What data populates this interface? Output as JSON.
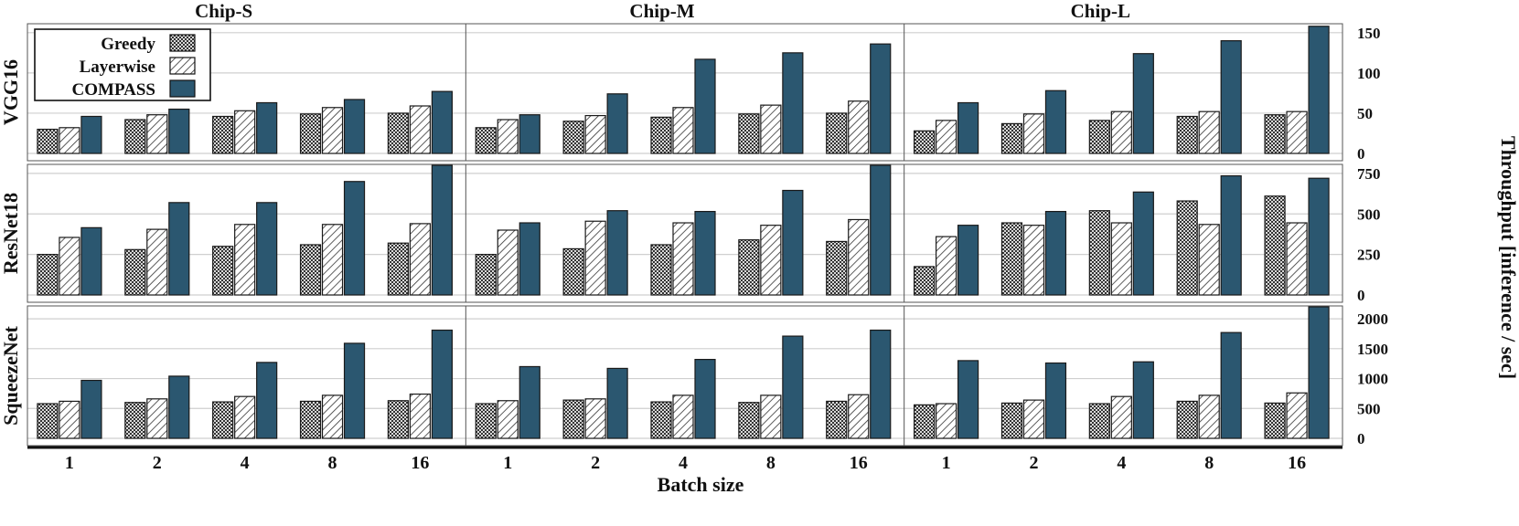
{
  "chart_data": {
    "type": "bar",
    "xlabel": "Batch size",
    "ylabel": "Throughput [inference / sec]",
    "columns": [
      "Chip-S",
      "Chip-M",
      "Chip-L"
    ],
    "categories": [
      "1",
      "2",
      "4",
      "8",
      "16"
    ],
    "legend": {
      "placement": "top-left",
      "entries": [
        "Greedy",
        "Layerwise",
        "COMPASS"
      ]
    },
    "series_styles": [
      {
        "name": "Greedy",
        "pattern": "checker",
        "color": "#8c8c8c"
      },
      {
        "name": "Layerwise",
        "pattern": "diagonal-hatch",
        "color": "#ffffff"
      },
      {
        "name": "COMPASS",
        "pattern": "solid",
        "color": "#2b5770"
      }
    ],
    "rows": [
      {
        "label": "VGG16",
        "ylim": [
          0,
          160
        ],
        "yticks": [
          0,
          50,
          100,
          150
        ],
        "panels": [
          {
            "greedy": [
              30,
              42,
              46,
              49,
              50
            ],
            "layerwise": [
              32,
              48,
              53,
              57,
              59
            ],
            "compass": [
              46,
              55,
              63,
              67,
              77
            ]
          },
          {
            "greedy": [
              32,
              40,
              45,
              49,
              50
            ],
            "layerwise": [
              42,
              47,
              57,
              60,
              65
            ],
            "compass": [
              48,
              74,
              117,
              125,
              136
            ]
          },
          {
            "greedy": [
              28,
              37,
              41,
              46,
              48
            ],
            "layerwise": [
              41,
              49,
              52,
              52,
              52
            ],
            "compass": [
              63,
              78,
              124,
              140,
              158
            ]
          }
        ]
      },
      {
        "label": "ResNet18",
        "ylim": [
          0,
          800
        ],
        "yticks": [
          0,
          250,
          500,
          750
        ],
        "panels": [
          {
            "greedy": [
              250,
              280,
              300,
              310,
              320
            ],
            "layerwise": [
              355,
              405,
              435,
              435,
              440
            ],
            "compass": [
              415,
              570,
              570,
              700,
              800
            ]
          },
          {
            "greedy": [
              250,
              285,
              310,
              340,
              330
            ],
            "layerwise": [
              400,
              455,
              445,
              430,
              465
            ],
            "compass": [
              445,
              520,
              515,
              645,
              800
            ]
          },
          {
            "greedy": [
              175,
              445,
              520,
              580,
              610
            ],
            "layerwise": [
              360,
              430,
              445,
              435,
              445
            ],
            "compass": [
              430,
              515,
              635,
              735,
              720
            ]
          }
        ]
      },
      {
        "label": "SqueezeNet",
        "ylim": [
          0,
          2200
        ],
        "yticks": [
          0,
          500,
          1000,
          1500,
          2000
        ],
        "panels": [
          {
            "greedy": [
              580,
              600,
              610,
              620,
              630
            ],
            "layerwise": [
              620,
              660,
              700,
              720,
              740
            ],
            "compass": [
              970,
              1040,
              1270,
              1590,
              1810
            ]
          },
          {
            "greedy": [
              580,
              640,
              610,
              600,
              620
            ],
            "layerwise": [
              630,
              660,
              720,
              720,
              730
            ],
            "compass": [
              1200,
              1170,
              1320,
              1710,
              1810
            ]
          },
          {
            "greedy": [
              560,
              590,
              580,
              620,
              590
            ],
            "layerwise": [
              580,
              640,
              700,
              720,
              760
            ],
            "compass": [
              1300,
              1260,
              1280,
              1770,
              2200
            ]
          }
        ]
      }
    ],
    "grid": true
  }
}
